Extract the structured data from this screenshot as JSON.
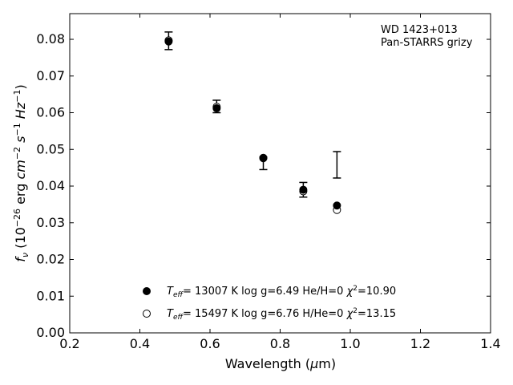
{
  "chart_data": {
    "type": "scatter",
    "xlabel": "Wavelength (μm)",
    "ylabel": "f_ν (10^-26 erg cm^-2 s^-1 Hz^-1)",
    "xlim": [
      0.2,
      1.4
    ],
    "ylim": [
      0.0,
      0.087
    ],
    "xticks": [
      "0.2",
      "0.4",
      "0.6",
      "0.8",
      "1.0",
      "1.2",
      "1.4"
    ],
    "xtick_values": [
      0.2,
      0.4,
      0.6,
      0.8,
      1.0,
      1.2,
      1.4
    ],
    "yticks": [
      "0.00",
      "0.01",
      "0.02",
      "0.03",
      "0.04",
      "0.05",
      "0.06",
      "0.07",
      "0.08"
    ],
    "ytick_values": [
      0.0,
      0.01,
      0.02,
      0.03,
      0.04,
      0.05,
      0.06,
      0.07,
      0.08
    ],
    "grid": false,
    "annotation": {
      "line1": "WD 1423+013",
      "line2": "Pan-STARRS grizy"
    },
    "observed": {
      "x": [
        0.482,
        0.619,
        0.752,
        0.866,
        0.962
      ],
      "y": [
        0.0796,
        0.0617,
        0.0462,
        0.039,
        0.0458
      ],
      "yerr": [
        0.0024,
        0.0017,
        0.0017,
        0.002,
        0.0036
      ]
    },
    "series": [
      {
        "name": "T_eff= 13007 K  log g=6.49  He/H=0  χ²=10.90",
        "marker": "filled-circle",
        "x": [
          0.482,
          0.619,
          0.752,
          0.866,
          0.962
        ],
        "y": [
          0.0794,
          0.0612,
          0.0477,
          0.039,
          0.0347
        ]
      },
      {
        "name": "T_eff= 15497 K  log g=6.76  H/He=0  χ²=13.15",
        "marker": "open-circle",
        "x": [
          0.482,
          0.619,
          0.752,
          0.866,
          0.962
        ],
        "y": [
          0.0797,
          0.0616,
          0.0476,
          0.0386,
          0.0335
        ]
      }
    ],
    "legend": {
      "placement": "lower-center",
      "entries": [
        {
          "teff": "= 13007 K  log g=6.49  He/H=0  ",
          "chi": "=10.90"
        },
        {
          "teff": "= 15497 K  log g=6.76  H/He=0  ",
          "chi": "=13.15"
        }
      ]
    },
    "colors": {
      "marker": "#000000",
      "axis": "#000000",
      "background": "#ffffff"
    }
  }
}
